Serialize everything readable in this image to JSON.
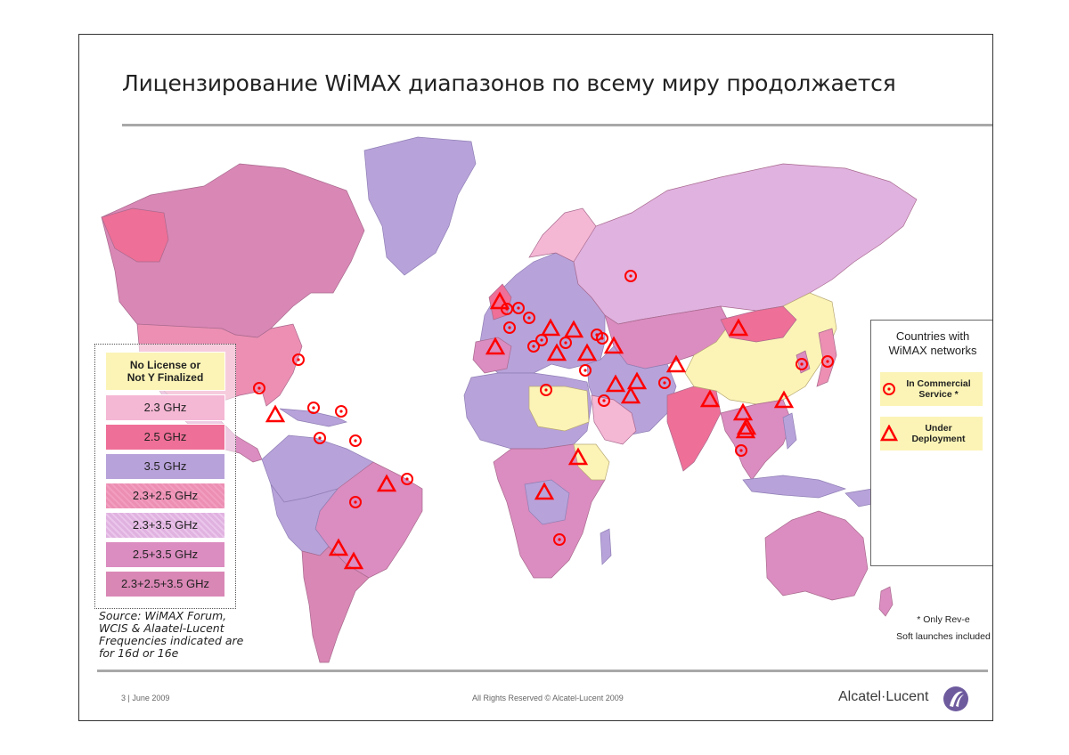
{
  "title": "Лицензирование WiMAX диапазонов по всему миру продолжается",
  "colors": {
    "none": "#fbf4b6",
    "ghz23": "#f4b7d4",
    "ghz25": "#ee6f97",
    "ghz35": "#b8a2da",
    "ghz23_25": "#ec8fb3",
    "ghz23_35": "#e0b2e0",
    "ghz25_35": "#db8cc0",
    "ghz23_25_35": "#d987b5",
    "marker": "#ff0000"
  },
  "legend": {
    "no_license": [
      "No License or",
      "Not Y Finalized"
    ],
    "items": [
      "2.3 GHz",
      "2.5 GHz",
      "3.5 GHz",
      "2.3+2.5 GHz",
      "2.3+3.5 GHz",
      "2.5+3.5 GHz",
      "2.3+2.5+3.5 GHz"
    ]
  },
  "source": [
    "Source: WiMAX Forum,",
    "WCIS & Alaatel-Lucent",
    "Frequencies indicated are",
    "for 16d or 16e"
  ],
  "networks": {
    "title": [
      "Countries with",
      "WiMAX networks"
    ],
    "commercial": [
      "In Commercial",
      "Service *"
    ],
    "deployment": [
      "Under",
      "Deployment"
    ]
  },
  "footnote": [
    "* Only Rev-e",
    "Soft launches included"
  ],
  "footer": {
    "date": "3 | June 2009",
    "rights": "All Rights Reserved © Alcatel-Lucent 2009",
    "logo": "Alcatel·Lucent"
  },
  "markers": [
    {
      "type": "commercial",
      "region": "USA"
    },
    {
      "type": "commercial",
      "region": "Mexico"
    },
    {
      "type": "deployment",
      "region": "Mexico south"
    },
    {
      "type": "commercial",
      "region": "Dominican Republic"
    },
    {
      "type": "commercial",
      "region": "Puerto Rico"
    },
    {
      "type": "commercial",
      "region": "Colombia"
    },
    {
      "type": "commercial",
      "region": "Venezuela"
    },
    {
      "type": "commercial",
      "region": "Bolivia"
    },
    {
      "type": "deployment",
      "region": "Brazil"
    },
    {
      "type": "commercial",
      "region": "Brazil east"
    },
    {
      "type": "deployment",
      "region": "Chile"
    },
    {
      "type": "deployment",
      "region": "Argentina"
    },
    {
      "type": "deployment",
      "region": "Ireland"
    },
    {
      "type": "commercial",
      "region": "United Kingdom"
    },
    {
      "type": "commercial",
      "region": "Germany"
    },
    {
      "type": "commercial",
      "region": "Poland"
    },
    {
      "type": "commercial",
      "region": "France"
    },
    {
      "type": "commercial",
      "region": "Switzerland"
    },
    {
      "type": "commercial",
      "region": "Italy north"
    },
    {
      "type": "deployment",
      "region": "Spain"
    },
    {
      "type": "deployment",
      "region": "Austria"
    },
    {
      "type": "deployment",
      "region": "Romania"
    },
    {
      "type": "commercial",
      "region": "Serbia"
    },
    {
      "type": "deployment",
      "region": "Italy south"
    },
    {
      "type": "deployment",
      "region": "Greece"
    },
    {
      "type": "commercial",
      "region": "Bulgaria"
    },
    {
      "type": "commercial",
      "region": "Turkey"
    },
    {
      "type": "deployment",
      "region": "Georgia"
    },
    {
      "type": "commercial",
      "region": "Lebanon"
    },
    {
      "type": "commercial",
      "region": "Russia"
    },
    {
      "type": "commercial",
      "region": "Libya"
    },
    {
      "type": "commercial",
      "region": "Saudi Arabia"
    },
    {
      "type": "deployment",
      "region": "Iran"
    },
    {
      "type": "deployment",
      "region": "UAE"
    },
    {
      "type": "deployment",
      "region": "Oman"
    },
    {
      "type": "commercial",
      "region": "Pakistan"
    },
    {
      "type": "deployment",
      "region": "Afghanistan"
    },
    {
      "type": "deployment",
      "region": "India"
    },
    {
      "type": "deployment",
      "region": "Mongolia"
    },
    {
      "type": "deployment",
      "region": "Thailand"
    },
    {
      "type": "deployment",
      "region": "Thailand south"
    },
    {
      "type": "deployment",
      "region": "Malaysia"
    },
    {
      "type": "commercial",
      "region": "Malaysia south"
    },
    {
      "type": "deployment",
      "region": "Taiwan"
    },
    {
      "type": "commercial",
      "region": "Korea"
    },
    {
      "type": "commercial",
      "region": "Japan"
    },
    {
      "type": "deployment",
      "region": "Nigeria"
    },
    {
      "type": "deployment",
      "region": "Angola"
    },
    {
      "type": "commercial",
      "region": "South Africa"
    }
  ]
}
